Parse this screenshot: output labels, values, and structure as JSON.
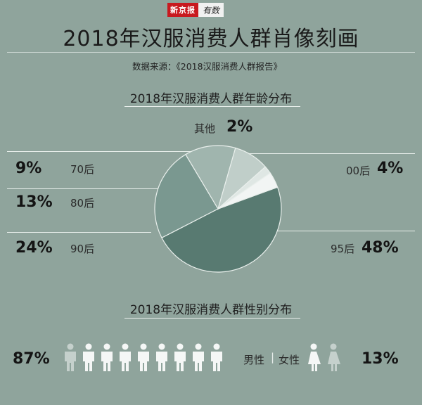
{
  "logo": {
    "part1": "新京报",
    "part2": "有数"
  },
  "title": "2018年汉服消费人群肖像刻画",
  "source": "数据来源：《2018汉服消费人群报告》",
  "age_title": "2018年汉服消费人群年龄分布",
  "gender_title": "2018年汉服消费人群性别分布",
  "colors": {
    "background": "#8fa49c",
    "p95": "#587a71",
    "p90": "#7a9890",
    "p80": "#a0b5ae",
    "p70": "#c0cec9",
    "p00": "#f2f5f4",
    "other": "#dfe7e4",
    "icon_light": "#f5f7f6",
    "icon_dim": "#c5d0cc"
  },
  "chart_data": [
    {
      "type": "pie",
      "title": "2018年汉服消费人群年龄分布",
      "slices": [
        {
          "label": "95后",
          "value": 48,
          "display": "48%"
        },
        {
          "label": "90后",
          "value": 24,
          "display": "24%"
        },
        {
          "label": "80后",
          "value": 13,
          "display": "13%"
        },
        {
          "label": "70后",
          "value": 9,
          "display": "9%"
        },
        {
          "label": "其他",
          "value": 2,
          "display": "2%"
        },
        {
          "label": "00后",
          "value": 4,
          "display": "4%"
        }
      ]
    },
    {
      "type": "bar",
      "title": "2018年汉服消费人群性别分布",
      "categories": [
        "男性",
        "女性"
      ],
      "values": [
        87,
        13
      ],
      "display": [
        "87%",
        "13%"
      ],
      "separator": "|"
    }
  ]
}
